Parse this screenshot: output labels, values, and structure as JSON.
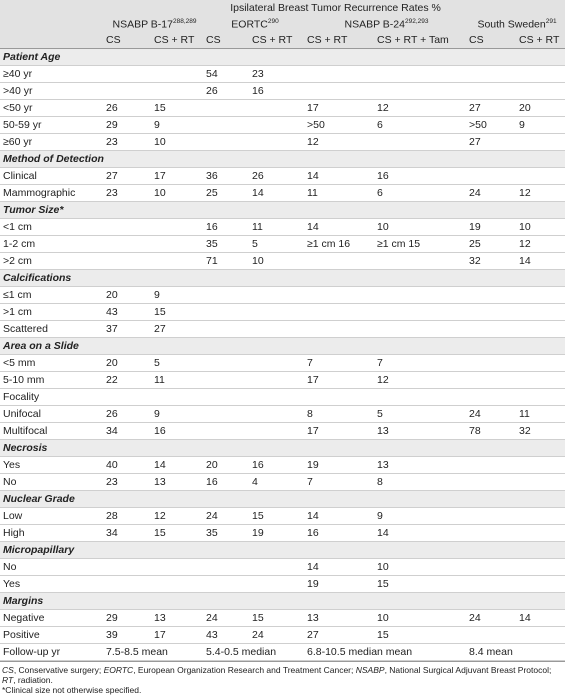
{
  "table": {
    "title": "Ipsilateral Breast Tumor Recurrence Rates %",
    "groups": [
      {
        "name": "NSABP B-17",
        "ref": "288,289"
      },
      {
        "name": "EORTC",
        "ref": "290"
      },
      {
        "name": "NSABP B-24",
        "ref": "292,293"
      },
      {
        "name": "South Sweden",
        "ref": "291"
      }
    ],
    "subheaders": [
      "CS",
      "CS + RT",
      "CS",
      "CS + RT",
      "CS + RT",
      "CS + RT + Tam",
      "CS",
      "CS + RT"
    ],
    "rows": [
      {
        "label": "Patient Age"
      },
      {
        "label": "≥40 yr",
        "cells": [
          null,
          null,
          "54",
          "23",
          null,
          null,
          null,
          null
        ]
      },
      {
        "label": ">40 yr",
        "cells": [
          null,
          null,
          "26",
          "16",
          null,
          null,
          null,
          null
        ]
      },
      {
        "label": "<50 yr",
        "cells": [
          "26",
          "15",
          null,
          null,
          "17",
          "12",
          "27",
          "20"
        ]
      },
      {
        "label": "50-59 yr",
        "cells": [
          "29",
          "9",
          null,
          null,
          ">50",
          "6",
          ">50",
          "9"
        ]
      },
      {
        "label": "≥60 yr",
        "cells": [
          "23",
          "10",
          null,
          null,
          "12",
          null,
          "27",
          null
        ]
      },
      {
        "label": "Method of Detection"
      },
      {
        "label": "Clinical",
        "cells": [
          "27",
          "17",
          "36",
          "26",
          "14",
          "16",
          null,
          null
        ]
      },
      {
        "label": "Mammographic",
        "cells": [
          "23",
          "10",
          "25",
          "14",
          "11",
          "6",
          "24",
          "12"
        ]
      },
      {
        "label": "Tumor Size*"
      },
      {
        "label": "<1 cm",
        "cells": [
          null,
          null,
          "16",
          "11",
          "14",
          "10",
          "19",
          "10"
        ]
      },
      {
        "label": "1-2 cm",
        "cells": [
          null,
          null,
          "35",
          "5",
          "≥1 cm 16",
          "≥1 cm 15",
          "25",
          "12"
        ]
      },
      {
        "label": ">2 cm",
        "cells": [
          null,
          null,
          "71",
          "10",
          null,
          null,
          "32",
          "14"
        ]
      },
      {
        "label": "Calcifications"
      },
      {
        "label": "≤1 cm",
        "cells": [
          "20",
          "9",
          null,
          null,
          null,
          null,
          null,
          null
        ]
      },
      {
        "label": ">1 cm",
        "cells": [
          "43",
          "15",
          null,
          null,
          null,
          null,
          null,
          null
        ]
      },
      {
        "label": "Scattered",
        "cells": [
          "37",
          "27",
          null,
          null,
          null,
          null,
          null,
          null
        ]
      },
      {
        "label": "Area on a Slide"
      },
      {
        "label": "<5 mm",
        "cells": [
          "20",
          "5",
          null,
          null,
          "7",
          "7",
          null,
          null
        ]
      },
      {
        "label": "5-10 mm",
        "cells": [
          "22",
          "11",
          null,
          null,
          "17",
          "12",
          null,
          null
        ]
      },
      {
        "label": "Focality",
        "cells": [
          null,
          null,
          null,
          null,
          null,
          null,
          null,
          null
        ]
      },
      {
        "label": "Unifocal",
        "cells": [
          "26",
          "9",
          null,
          null,
          "8",
          "5",
          "24",
          "11"
        ]
      },
      {
        "label": "Multifocal",
        "cells": [
          "34",
          "16",
          null,
          null,
          "17",
          "13",
          "78",
          "32"
        ]
      },
      {
        "label": "Necrosis"
      },
      {
        "label": "Yes",
        "cells": [
          "40",
          "14",
          "20",
          "16",
          "19",
          "13",
          null,
          null
        ]
      },
      {
        "label": "No",
        "cells": [
          "23",
          "13",
          "16",
          "4",
          "7",
          "8",
          null,
          null
        ]
      },
      {
        "label": "Nuclear Grade"
      },
      {
        "label": "Low",
        "cells": [
          "28",
          "12",
          "24",
          "15",
          "14",
          "9",
          null,
          null
        ]
      },
      {
        "label": "High",
        "cells": [
          "34",
          "15",
          "35",
          "19",
          "16",
          "14",
          null,
          null
        ]
      },
      {
        "label": "Micropapillary"
      },
      {
        "label": "No",
        "cells": [
          null,
          null,
          null,
          null,
          "14",
          "10",
          null,
          null
        ]
      },
      {
        "label": "Yes",
        "cells": [
          null,
          null,
          null,
          null,
          "19",
          "15",
          null,
          null
        ]
      },
      {
        "label": "Margins"
      },
      {
        "label": "Negative",
        "cells": [
          "29",
          "13",
          "24",
          "15",
          "13",
          "10",
          "24",
          "14"
        ]
      },
      {
        "label": "Positive",
        "cells": [
          "39",
          "17",
          "43",
          "24",
          "27",
          "15",
          null,
          null
        ]
      }
    ],
    "follow_up": {
      "label": "Follow-up yr",
      "values": [
        "7.5-8.5 mean",
        "5.4-0.5 median",
        "6.8-10.5 median mean",
        "8.4 mean"
      ]
    }
  },
  "footnote": {
    "segments": [
      "CS",
      ", Conservative surgery; ",
      "EORTC",
      ", European Organization Research and Treatment Cancer; ",
      "NSABP",
      ", National Surgical Adjuvant Breast Protocol; ",
      "RT",
      ", radiation."
    ],
    "note": "*Clinical size not otherwise specified."
  }
}
